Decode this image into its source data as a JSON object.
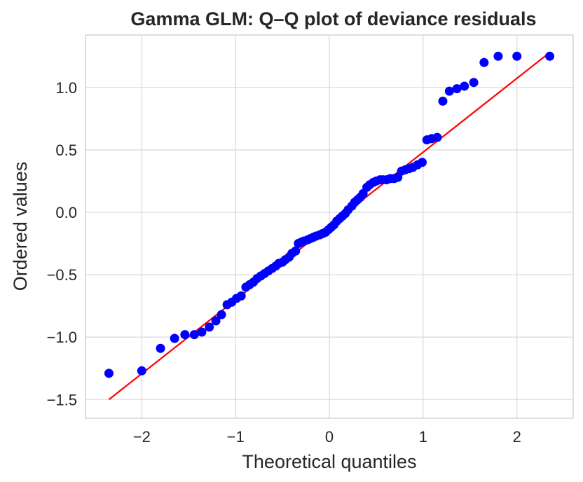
{
  "chart_data": {
    "type": "scatter",
    "title": "Gamma GLM: Q–Q plot of deviance residuals",
    "xlabel": "Theoretical quantiles",
    "ylabel": "Ordered values",
    "xlim": [
      -2.6,
      2.6
    ],
    "ylim": [
      -1.65,
      1.42
    ],
    "grid": true,
    "x_ticks": [
      {
        "value": -2,
        "label": "−2"
      },
      {
        "value": -1,
        "label": "−1"
      },
      {
        "value": 0,
        "label": "0"
      },
      {
        "value": 1,
        "label": "1"
      },
      {
        "value": 2,
        "label": "2"
      }
    ],
    "y_ticks": [
      {
        "value": -1.5,
        "label": "−1.5"
      },
      {
        "value": -1.0,
        "label": "−1.0"
      },
      {
        "value": -0.5,
        "label": "−0.5"
      },
      {
        "value": 0.0,
        "label": "0.0"
      },
      {
        "value": 0.5,
        "label": "0.5"
      },
      {
        "value": 1.0,
        "label": "1.0"
      }
    ],
    "point_color": "#0000ff",
    "line_color": "#ff0000",
    "points": {
      "x": [
        -2.35,
        -2.0,
        -1.8,
        -1.65,
        -1.54,
        -1.44,
        -1.36,
        -1.28,
        -1.21,
        -1.15,
        -1.09,
        -1.04,
        -0.99,
        -0.94,
        -0.89,
        -0.85,
        -0.81,
        -0.77,
        -0.73,
        -0.69,
        -0.65,
        -0.61,
        -0.57,
        -0.54,
        -0.5,
        -0.47,
        -0.43,
        -0.4,
        -0.36,
        -0.33,
        -0.3,
        -0.27,
        -0.23,
        -0.2,
        -0.17,
        -0.14,
        -0.1,
        -0.07,
        -0.04,
        -0.01,
        0.02,
        0.05,
        0.08,
        0.11,
        0.14,
        0.17,
        0.2,
        0.24,
        0.27,
        0.3,
        0.33,
        0.36,
        0.4,
        0.43,
        0.47,
        0.5,
        0.54,
        0.57,
        0.61,
        0.65,
        0.69,
        0.73,
        0.77,
        0.81,
        0.85,
        0.89,
        0.94,
        0.99,
        1.04,
        1.09,
        1.15,
        1.21,
        1.28,
        1.36,
        1.44,
        1.54,
        1.65,
        1.8,
        2.0,
        2.35
      ],
      "y": [
        -1.29,
        -1.27,
        -1.09,
        -1.01,
        -0.98,
        -0.98,
        -0.96,
        -0.92,
        -0.87,
        -0.82,
        -0.74,
        -0.72,
        -0.69,
        -0.67,
        -0.6,
        -0.58,
        -0.56,
        -0.53,
        -0.51,
        -0.49,
        -0.47,
        -0.45,
        -0.43,
        -0.41,
        -0.4,
        -0.38,
        -0.36,
        -0.33,
        -0.31,
        -0.25,
        -0.24,
        -0.23,
        -0.22,
        -0.21,
        -0.2,
        -0.19,
        -0.18,
        -0.17,
        -0.16,
        -0.14,
        -0.12,
        -0.1,
        -0.07,
        -0.05,
        -0.03,
        -0.01,
        0.02,
        0.05,
        0.08,
        0.1,
        0.12,
        0.15,
        0.2,
        0.22,
        0.24,
        0.25,
        0.26,
        0.26,
        0.26,
        0.27,
        0.27,
        0.28,
        0.33,
        0.34,
        0.35,
        0.36,
        0.38,
        0.4,
        0.58,
        0.59,
        0.6,
        0.89,
        0.97,
        0.99,
        1.01,
        1.04,
        1.2,
        1.25,
        1.25,
        1.25
      ]
    },
    "fit_line": {
      "x": [
        -2.35,
        2.35
      ],
      "y": [
        -1.5,
        1.28
      ]
    }
  }
}
